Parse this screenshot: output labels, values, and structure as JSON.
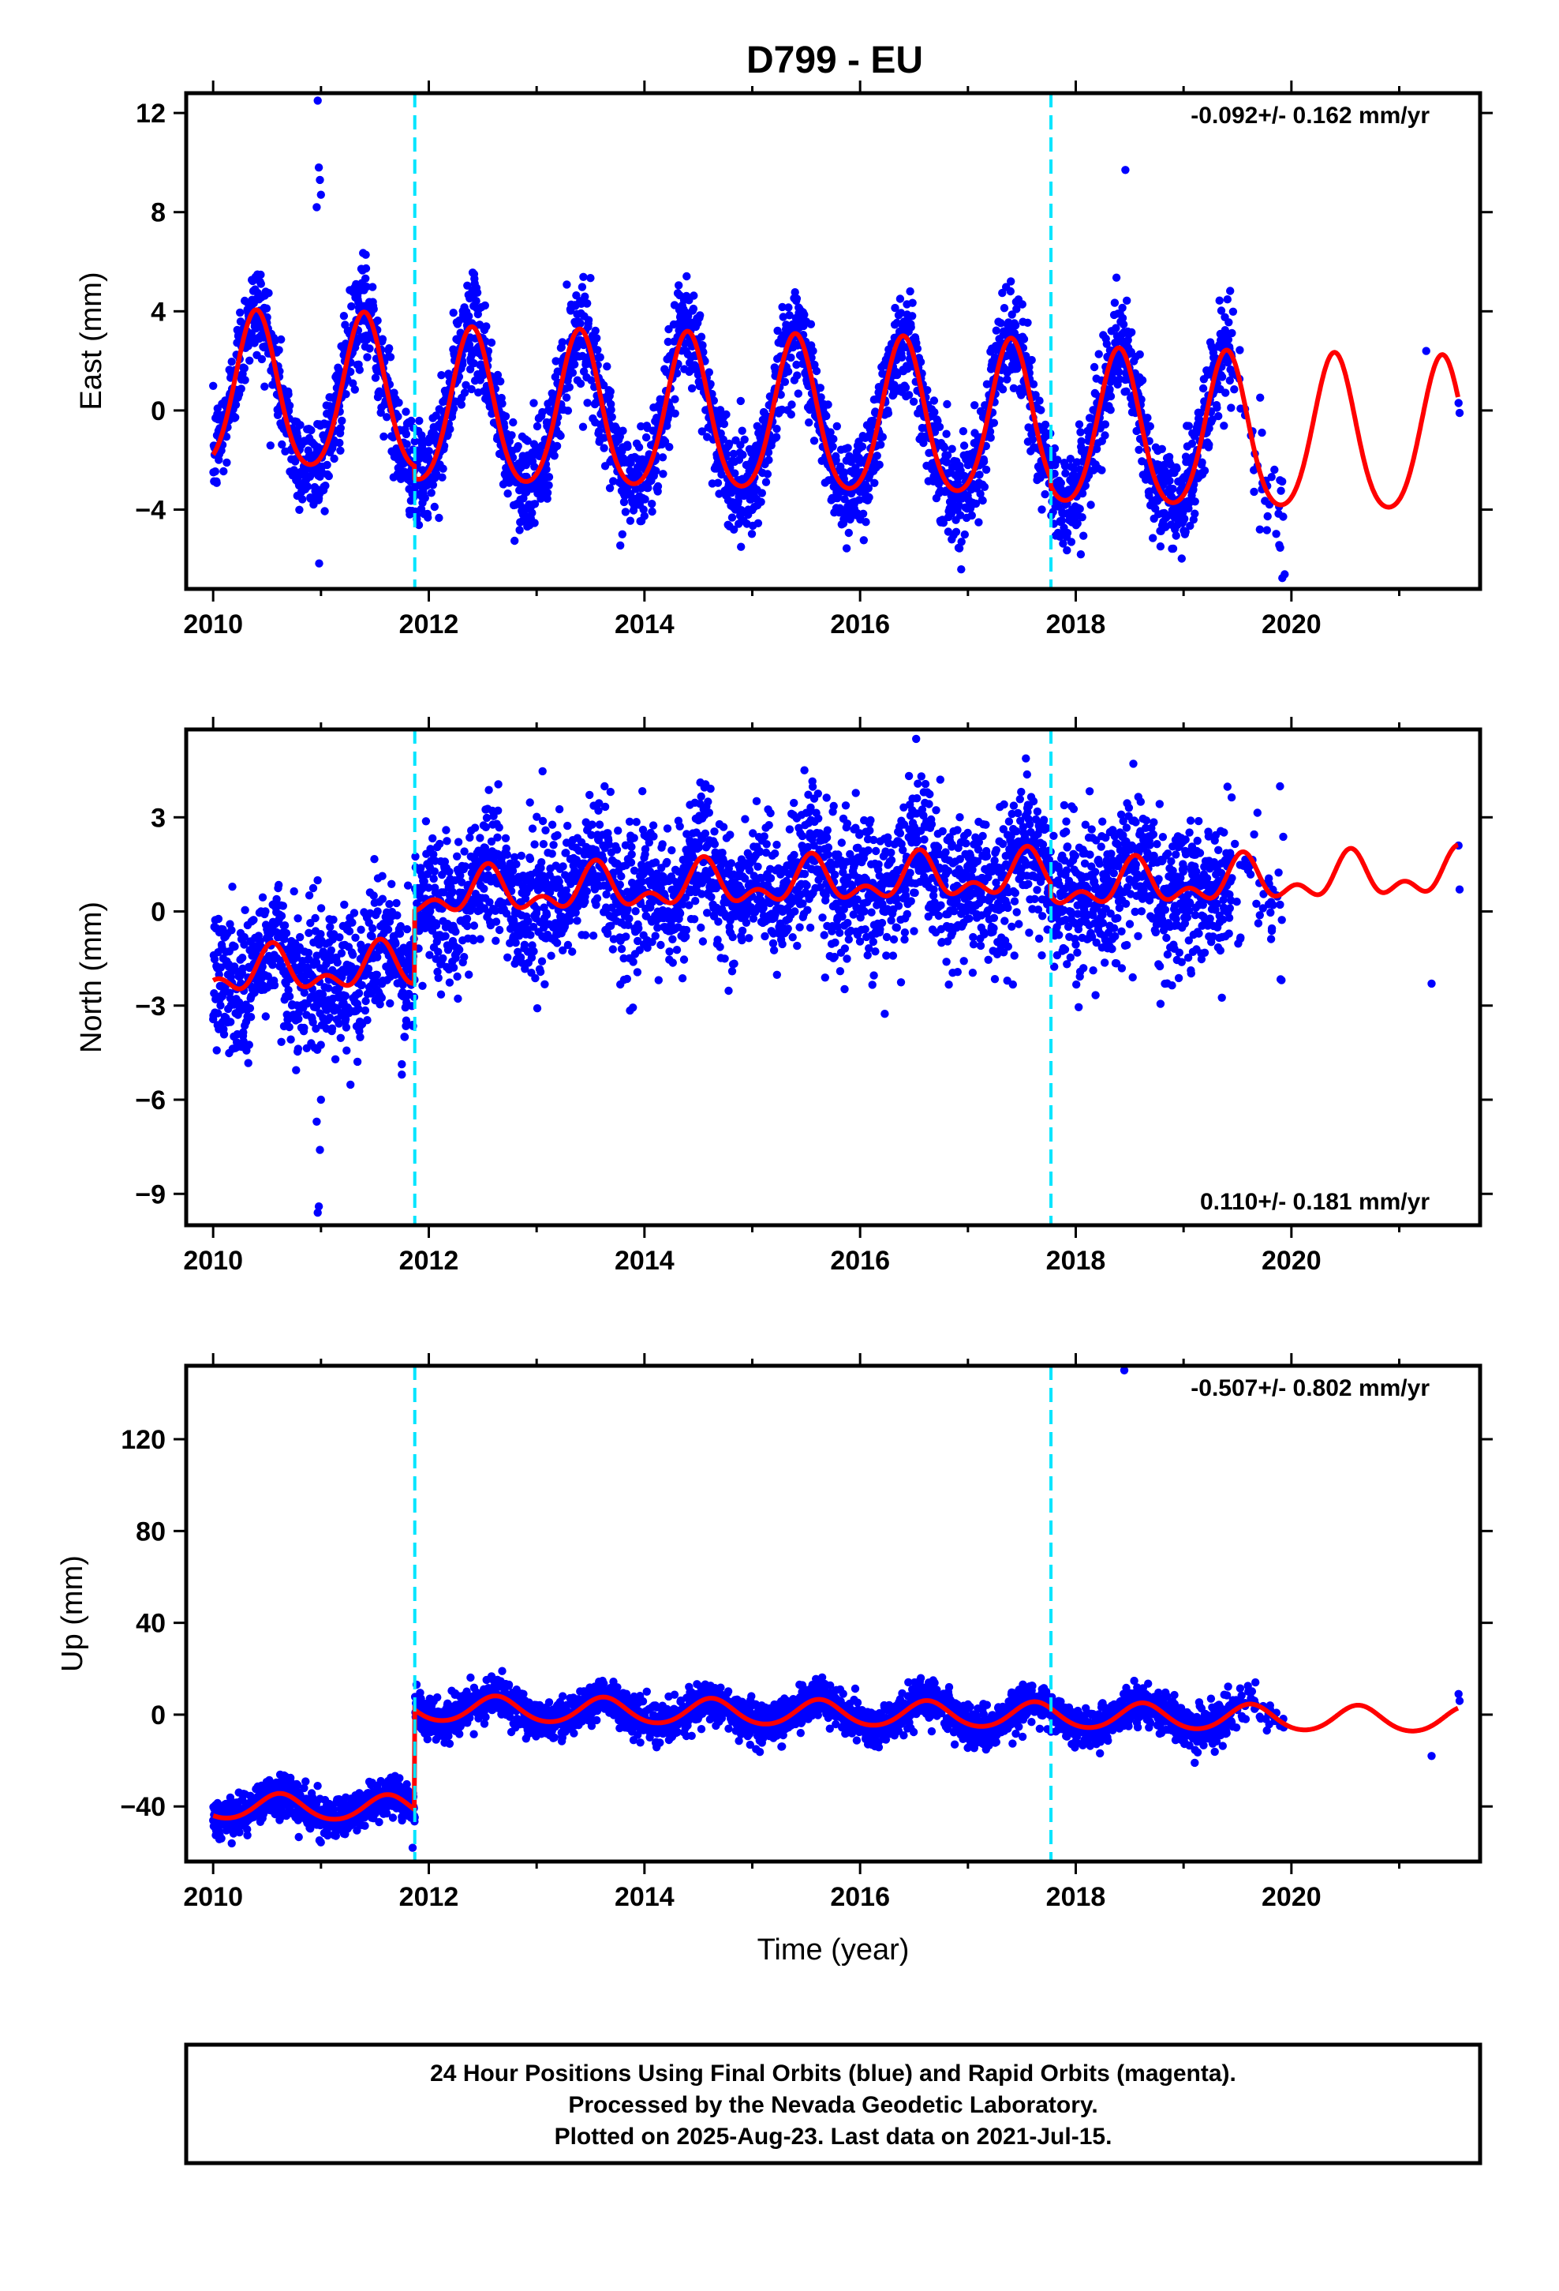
{
  "title": "D799 - EU",
  "colors": {
    "final_orbits": "#0000ff",
    "model_fit": "#ff0000",
    "offset_lines": "#00e5ff",
    "frame": "#000000"
  },
  "caption": {
    "line1": "24 Hour Positions Using Final Orbits (blue) and Rapid Orbits (magenta).",
    "line2": "Processed by the Nevada Geodetic Laboratory.",
    "line3": "Plotted on 2025-Aug-23. Last data on 2021-Jul-15."
  },
  "chart_data": [
    {
      "type": "scatter",
      "panel": "east",
      "title": "",
      "xlabel": "",
      "ylabel": "East (mm)",
      "xlim": [
        2009.75,
        2021.75
      ],
      "ylim": [
        -7.2,
        12.8
      ],
      "xticks": [
        2010,
        2012,
        2014,
        2016,
        2018,
        2020
      ],
      "yticks": [
        -4,
        0,
        4,
        8,
        12
      ],
      "rate_text": "-0.092+/- 0.162 mm/yr",
      "rate_position": "top-right",
      "offset_epochs": [
        2011.87,
        2017.77
      ],
      "data_gap": [
        2019.45,
        2021.2
      ],
      "model": {
        "offset": 0.6,
        "rate": -0.092,
        "annual_amp": 3.1,
        "annual_phase_year": 0.4,
        "semiannual_amp": 0.4,
        "step_at_offsets": [
          -0.5,
          -0.3
        ]
      },
      "scatter_sigma": 1.0,
      "outliers": [
        [
          2010.97,
          12.5
        ],
        [
          2010.98,
          9.8
        ],
        [
          2010.99,
          9.3
        ],
        [
          2011.0,
          8.7
        ],
        [
          2010.96,
          8.2
        ],
        [
          2018.46,
          9.7
        ]
      ],
      "end_points": [
        [
          2021.55,
          0.3
        ],
        [
          2021.56,
          -0.1
        ],
        [
          2021.25,
          2.4
        ]
      ]
    },
    {
      "type": "scatter",
      "panel": "north",
      "title": "",
      "xlabel": "",
      "ylabel": "North (mm)",
      "xlim": [
        2009.75,
        2021.75
      ],
      "ylim": [
        -10.0,
        5.8
      ],
      "xticks": [
        2010,
        2012,
        2014,
        2016,
        2018,
        2020
      ],
      "yticks": [
        -9,
        -6,
        -3,
        0,
        3
      ],
      "rate_text": "0.110+/- 0.181 mm/yr",
      "rate_position": "bottom-right",
      "offset_epochs": [
        2011.87,
        2017.77
      ],
      "data_gap": [
        2019.45,
        2021.2
      ],
      "model": {
        "offset": -2.0,
        "rate": 0.11,
        "annual_amp": 0.55,
        "annual_phase_year": 0.55,
        "semiannual_amp": 0.4,
        "step_at_offsets": [
          2.3,
          -0.4
        ]
      },
      "scatter_sigma": 1.1,
      "outliers": [
        [
          2010.98,
          -9.4
        ],
        [
          2010.97,
          -9.6
        ],
        [
          2010.99,
          -7.6
        ],
        [
          2011.0,
          -6.0
        ],
        [
          2010.96,
          -6.7
        ],
        [
          2016.52,
          5.5
        ],
        [
          2011.75,
          -5.2
        ]
      ],
      "end_points": [
        [
          2021.55,
          2.1
        ],
        [
          2021.56,
          0.7
        ],
        [
          2021.3,
          -2.3
        ]
      ]
    },
    {
      "type": "scatter",
      "panel": "up",
      "title": "",
      "xlabel": "Time (year)",
      "ylabel": "Up (mm)",
      "xlim": [
        2009.75,
        2021.75
      ],
      "ylim": [
        -64,
        152
      ],
      "xticks": [
        2010,
        2012,
        2014,
        2016,
        2018,
        2020
      ],
      "yticks": [
        -40,
        0,
        40,
        80,
        120
      ],
      "rate_text": "-0.507+/- 0.802 mm/yr",
      "rate_position": "top-right",
      "offset_epochs": [
        2011.87,
        2017.77
      ],
      "data_gap": [
        2019.45,
        2021.2
      ],
      "model": {
        "offset": -40.0,
        "rate": -0.507,
        "annual_amp": 5.5,
        "annual_phase_year": 0.62,
        "semiannual_amp": 0.5,
        "step_at_offsets": [
          43.5,
          0.0
        ]
      },
      "scatter_sigma": 4.2,
      "outliers": [
        [
          2018.45,
          150
        ],
        [
          2011.85,
          -58
        ]
      ],
      "end_points": [
        [
          2021.55,
          9.0
        ],
        [
          2021.56,
          6.0
        ],
        [
          2021.3,
          -18.0
        ]
      ]
    }
  ]
}
